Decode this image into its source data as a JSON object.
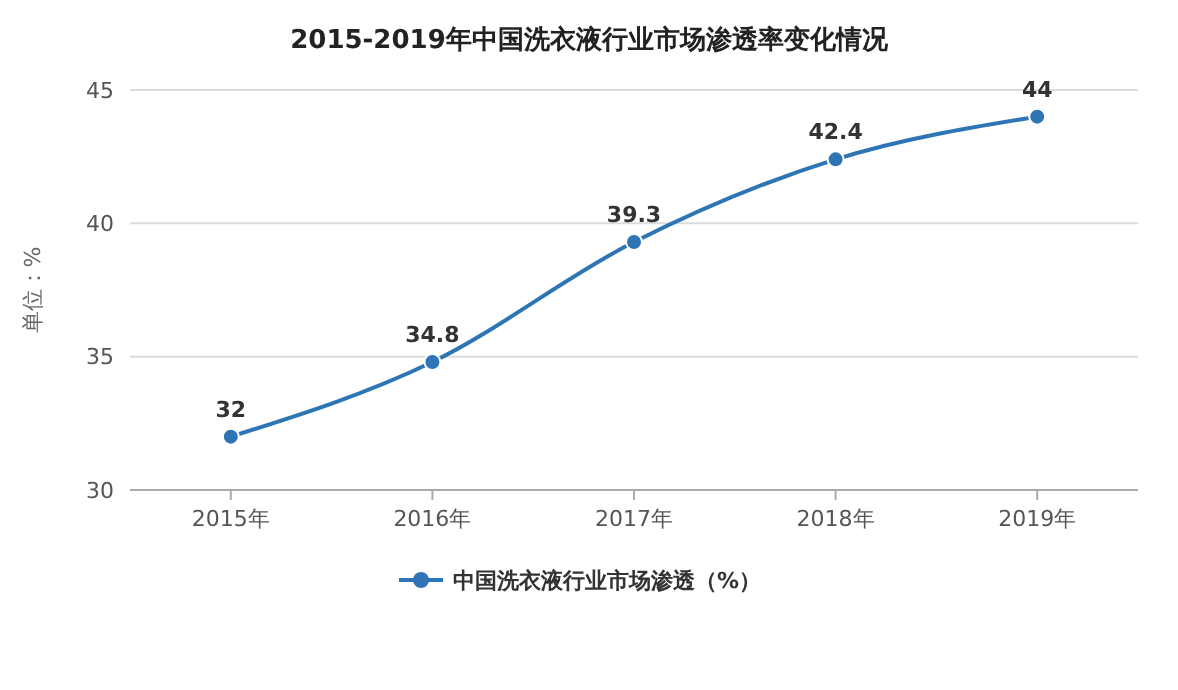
{
  "chart_data": {
    "type": "line",
    "title": "2015-2019年中国洗衣液行业市场渗透率变化情况",
    "ylabel": "单位：%",
    "categories": [
      "2015年",
      "2016年",
      "2017年",
      "2018年",
      "2019年"
    ],
    "series": [
      {
        "name": "中国洗衣液行业市场渗透（%）",
        "color": "#2e75b6",
        "values": [
          32,
          34.8,
          39.3,
          42.4,
          44
        ]
      }
    ],
    "ylim": [
      30,
      45
    ],
    "yticks": [
      30,
      35,
      40,
      45
    ],
    "grid": "y",
    "legend": "bottom",
    "marker": "circle",
    "line_style": "solid",
    "data_labels": true
  }
}
